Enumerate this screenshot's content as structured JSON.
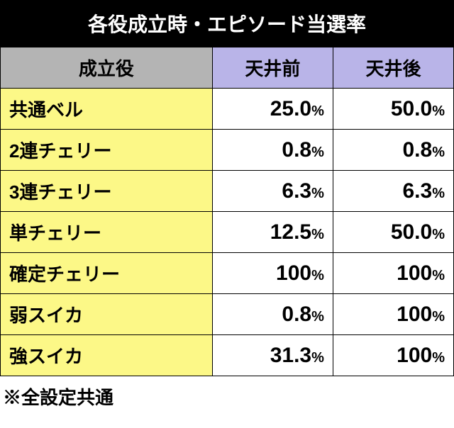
{
  "title": "各役成立時・エピソード当選率",
  "columns": {
    "role": "成立役",
    "before": "天井前",
    "after": "天井後"
  },
  "rows": [
    {
      "role": "共通ベル",
      "before": "25.0",
      "after": "50.0"
    },
    {
      "role": "2連チェリー",
      "before": "0.8",
      "after": "0.8"
    },
    {
      "role": "3連チェリー",
      "before": "6.3",
      "after": "6.3"
    },
    {
      "role": "単チェリー",
      "before": "12.5",
      "after": "50.0"
    },
    {
      "role": "確定チェリー",
      "before": "100",
      "after": "100"
    },
    {
      "role": "弱スイカ",
      "before": "0.8",
      "after": "100"
    },
    {
      "role": "強スイカ",
      "before": "31.3",
      "after": "100"
    }
  ],
  "percent_symbol": "%",
  "footnote": "※全設定共通",
  "styles": {
    "title_bg": "#000000",
    "title_color": "#ffffff",
    "role_header_bg": "#b4b4b4",
    "col_header_bg": "#b9b4e8",
    "role_cell_bg": "#fcf887",
    "value_cell_bg": "#ffffff",
    "border_color": "#000000",
    "font_sizes": {
      "title": 28,
      "header": 26,
      "cell": 26,
      "percent_num": 30,
      "percent_sym": 20,
      "footnote": 26
    }
  }
}
